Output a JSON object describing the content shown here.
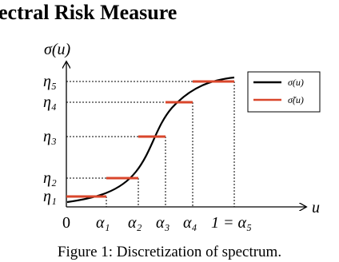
{
  "header": {
    "title": "ectral Risk Measure"
  },
  "figure": {
    "y_label": "σ(u)",
    "x_label": "u",
    "origin": "0",
    "x_ticks": [
      "α₁",
      "α₂",
      "α₃",
      "α₄",
      "1 = α₅"
    ],
    "y_ticks": [
      "η₁",
      "η₂",
      "η₃",
      "η₄",
      "η₅"
    ],
    "legend": [
      "σ(u)",
      "σ̃(u)"
    ],
    "caption": "Figure 1: Discretization of spectrum."
  }
}
